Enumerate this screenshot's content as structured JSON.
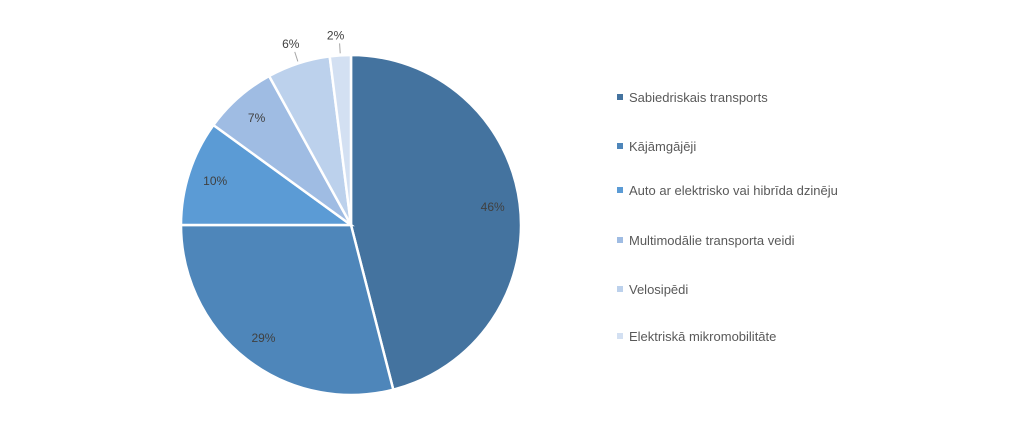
{
  "chart_data": {
    "type": "pie",
    "title": "",
    "categories": [
      "Sabiedriskais transports",
      "Kājāmgājēji",
      "Auto ar elektrisko vai hibrīda dzinēju",
      "Multimodālie transporta veidi",
      "Velosipēdi",
      "Elektriskā mikromobilitāte"
    ],
    "values": [
      46,
      29,
      10,
      7,
      6,
      2
    ],
    "labels": [
      "46%",
      "29%",
      "10%",
      "7%",
      "6%",
      "2%"
    ],
    "colors": [
      "#44739f",
      "#4e86ba",
      "#5b9bd5",
      "#9fbce3",
      "#bcd1ec",
      "#d3e0f2"
    ],
    "legend": "right"
  }
}
